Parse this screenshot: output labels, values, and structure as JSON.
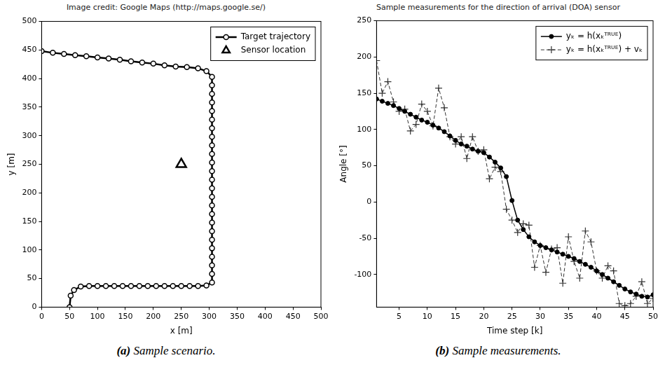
{
  "chart_data": [
    {
      "type": "line",
      "title": "Image credit: Google Maps (http://maps.google.se/)",
      "caption": "(a) Sample scenario.",
      "xlabel": "x [m]",
      "ylabel": "y [m]",
      "xlim": [
        0,
        500
      ],
      "ylim": [
        0,
        500
      ],
      "xticks": [
        0,
        50,
        100,
        150,
        200,
        250,
        300,
        350,
        400,
        450,
        500
      ],
      "yticks": [
        0,
        50,
        100,
        150,
        200,
        250,
        300,
        350,
        400,
        450,
        500
      ],
      "grid": false,
      "legend": "upper right",
      "series": [
        {
          "name": "Target trajectory",
          "color": "#000000",
          "marker": "open_circle",
          "line_style": "solid",
          "x": [
            0,
            20,
            40,
            60,
            80,
            100,
            120,
            140,
            160,
            180,
            200,
            220,
            240,
            260,
            280,
            295,
            305,
            305,
            305,
            305,
            305,
            305,
            305,
            305,
            305,
            305,
            305,
            305,
            305,
            305,
            305,
            305,
            305,
            305,
            305,
            305,
            305,
            305,
            305,
            305,
            305,
            295,
            280,
            265,
            250,
            235,
            220,
            205,
            190,
            175,
            160,
            145,
            130,
            115,
            100,
            85,
            70,
            58,
            52,
            50
          ],
          "values": [
            448,
            445,
            443,
            441,
            439,
            437,
            435,
            433,
            430,
            428,
            426,
            423,
            421,
            420,
            418,
            413,
            403,
            388,
            373,
            358,
            343,
            328,
            313,
            298,
            283,
            268,
            253,
            238,
            223,
            208,
            193,
            178,
            163,
            148,
            133,
            118,
            103,
            88,
            73,
            58,
            43,
            38,
            37,
            37,
            37,
            37,
            37,
            37,
            37,
            37,
            37,
            37,
            37,
            37,
            37,
            37,
            36,
            30,
            20,
            0
          ]
        },
        {
          "name": "Sensor location",
          "color": "#000000",
          "marker": "triangle",
          "line_style": "none",
          "x": [
            250
          ],
          "values": [
            250
          ]
        }
      ]
    },
    {
      "type": "line",
      "title": "Sample measurements for the direction of arrival (DOA) sensor",
      "caption": "(b) Sample measurements.",
      "xlabel": "Time step [k]",
      "ylabel": "Angle [°]",
      "xlim": [
        1,
        50
      ],
      "ylim": [
        -145,
        250
      ],
      "xticks": [
        5,
        10,
        15,
        20,
        25,
        30,
        35,
        40,
        45,
        50
      ],
      "yticks": [
        -100,
        -50,
        0,
        50,
        100,
        150,
        200,
        250
      ],
      "grid": false,
      "legend": "upper right",
      "x": [
        1,
        2,
        3,
        4,
        5,
        6,
        7,
        8,
        9,
        10,
        11,
        12,
        13,
        14,
        15,
        16,
        17,
        18,
        19,
        20,
        21,
        22,
        23,
        24,
        25,
        26,
        27,
        28,
        29,
        30,
        31,
        32,
        33,
        34,
        35,
        36,
        37,
        38,
        39,
        40,
        41,
        42,
        43,
        44,
        45,
        46,
        47,
        48,
        49,
        50
      ],
      "series": [
        {
          "name": "yₖ = h(xₖᵀᴿᵁᴱ)",
          "color": "#000000",
          "marker": "circle",
          "line_style": "solid",
          "values": [
            142,
            139,
            136,
            133,
            129,
            125,
            121,
            117,
            113,
            110,
            106,
            102,
            97,
            91,
            85,
            80,
            77,
            73,
            70,
            68,
            62,
            55,
            47,
            35,
            2,
            -25,
            -38,
            -48,
            -55,
            -60,
            -63,
            -66,
            -69,
            -72,
            -75,
            -78,
            -82,
            -86,
            -90,
            -95,
            -100,
            -105,
            -110,
            -115,
            -120,
            -124,
            -127,
            -130,
            -131,
            -128
          ]
        },
        {
          "name": "yₖ = h(xₖᵀᴿᵁᴱ) + vₖ",
          "color": "#333333",
          "marker": "cross",
          "line_style": "dashed",
          "values": [
            195,
            150,
            166,
            138,
            125,
            128,
            98,
            107,
            135,
            125,
            105,
            157,
            130,
            90,
            80,
            90,
            60,
            90,
            70,
            72,
            32,
            48,
            42,
            -10,
            -25,
            -42,
            -30,
            -32,
            -90,
            -60,
            -97,
            -65,
            -63,
            -112,
            -48,
            -82,
            -105,
            -40,
            -55,
            -95,
            -105,
            -88,
            -95,
            -140,
            -143,
            -140,
            -130,
            -110,
            -140,
            -133
          ]
        }
      ]
    }
  ]
}
